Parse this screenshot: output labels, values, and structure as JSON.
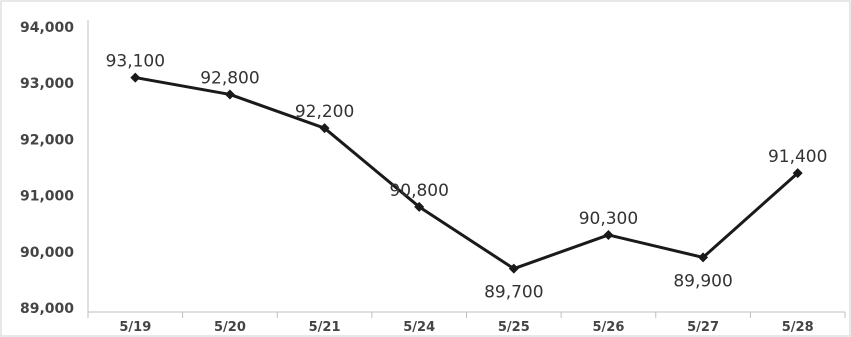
{
  "chart_data": {
    "type": "line",
    "title": "",
    "xlabel": "",
    "ylabel": "",
    "categories": [
      "5/19",
      "5/20",
      "5/21",
      "5/24",
      "5/25",
      "5/26",
      "5/27",
      "5/28"
    ],
    "series": [
      {
        "values": [
          93100,
          92800,
          92200,
          90800,
          89700,
          90300,
          89900,
          91400
        ],
        "data_labels": [
          "93,100",
          "92,800",
          "92,200",
          "90,800",
          "89,700",
          "90,300",
          "89,900",
          "91,400"
        ],
        "label_positions": [
          "above",
          "above",
          "above",
          "above",
          "below",
          "above",
          "below",
          "above"
        ]
      }
    ],
    "y_ticks": [
      "89,000",
      "90,000",
      "91,000",
      "92,000",
      "93,000",
      "94,000"
    ],
    "ylim": [
      89000,
      94000
    ],
    "grid": false,
    "legend": "none",
    "colors": {
      "line": "#1a1a1a",
      "marker": "#1a1a1a",
      "axis": "#bfbfbf",
      "text": "#444444"
    }
  }
}
